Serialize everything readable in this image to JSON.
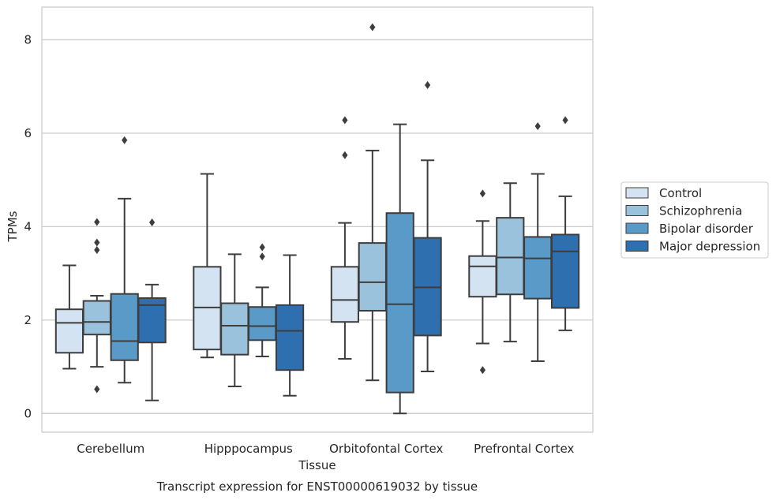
{
  "chart_data": {
    "type": "box",
    "caption": "Transcript expression for ENST00000619032 by tissue",
    "xlabel": "Tissue",
    "ylabel": "TPMs",
    "ylim": [
      -0.4,
      8.7
    ],
    "yticks": [
      0,
      2,
      4,
      6,
      8
    ],
    "grid": "horizontal",
    "legend_position": "right",
    "categories": [
      "Cerebellum",
      "Hipppocampus",
      "Orbitofontal Cortex",
      "Prefrontal Cortex"
    ],
    "series": [
      {
        "name": "Control",
        "color": "#d3e3f2",
        "boxes": [
          {
            "whislo": 0.96,
            "q1": 1.3,
            "med": 1.94,
            "q3": 2.23,
            "whishi": 3.17,
            "fliers": []
          },
          {
            "whislo": 1.2,
            "q1": 1.37,
            "med": 2.27,
            "q3": 3.14,
            "whishi": 5.13,
            "fliers": []
          },
          {
            "whislo": 1.17,
            "q1": 1.96,
            "med": 2.43,
            "q3": 3.14,
            "whishi": 4.08,
            "fliers": [
              5.53,
              6.28
            ]
          },
          {
            "whislo": 1.5,
            "q1": 2.5,
            "med": 3.15,
            "q3": 3.37,
            "whishi": 4.12,
            "fliers": [
              0.93,
              4.71
            ]
          }
        ]
      },
      {
        "name": "Schizophrenia",
        "color": "#9ac2dc",
        "boxes": [
          {
            "whislo": 1.0,
            "q1": 1.69,
            "med": 1.96,
            "q3": 2.41,
            "whishi": 2.52,
            "fliers": [
              0.52,
              3.5,
              3.66,
              4.1
            ]
          },
          {
            "whislo": 0.58,
            "q1": 1.26,
            "med": 1.88,
            "q3": 2.36,
            "whishi": 3.41,
            "fliers": []
          },
          {
            "whislo": 0.71,
            "q1": 2.2,
            "med": 2.81,
            "q3": 3.65,
            "whishi": 5.63,
            "fliers": [
              8.27
            ]
          },
          {
            "whislo": 1.54,
            "q1": 2.55,
            "med": 3.34,
            "q3": 4.19,
            "whishi": 4.93,
            "fliers": []
          }
        ]
      },
      {
        "name": "Bipolar disorder",
        "color": "#5a9ac9",
        "boxes": [
          {
            "whislo": 0.66,
            "q1": 1.14,
            "med": 1.55,
            "q3": 2.56,
            "whishi": 4.6,
            "fliers": [
              5.85
            ]
          },
          {
            "whislo": 1.22,
            "q1": 1.57,
            "med": 1.87,
            "q3": 2.28,
            "whishi": 2.7,
            "fliers": [
              3.36,
              3.56
            ]
          },
          {
            "whislo": 0.0,
            "q1": 0.45,
            "med": 2.34,
            "q3": 4.29,
            "whishi": 6.19,
            "fliers": []
          },
          {
            "whislo": 1.12,
            "q1": 2.46,
            "med": 3.32,
            "q3": 3.78,
            "whishi": 5.13,
            "fliers": [
              6.15
            ]
          }
        ]
      },
      {
        "name": "Major depression",
        "color": "#2e6fb0",
        "boxes": [
          {
            "whislo": 0.28,
            "q1": 1.52,
            "med": 2.32,
            "q3": 2.47,
            "whishi": 2.76,
            "fliers": [
              4.09
            ]
          },
          {
            "whislo": 0.38,
            "q1": 0.93,
            "med": 1.77,
            "q3": 2.32,
            "whishi": 3.39,
            "fliers": []
          },
          {
            "whislo": 0.9,
            "q1": 1.67,
            "med": 2.7,
            "q3": 3.76,
            "whishi": 5.42,
            "fliers": [
              7.03
            ]
          },
          {
            "whislo": 1.78,
            "q1": 2.26,
            "med": 3.47,
            "q3": 3.83,
            "whishi": 4.65,
            "fliers": [
              6.28
            ]
          }
        ]
      }
    ]
  }
}
